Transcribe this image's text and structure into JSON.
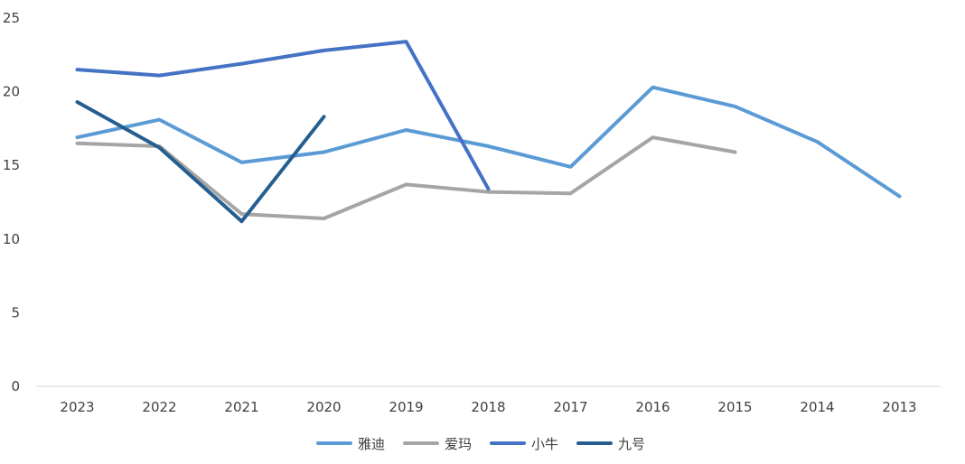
{
  "chart_data": {
    "type": "line",
    "title": "",
    "xlabel": "",
    "ylabel": "",
    "categories": [
      "2023",
      "2022",
      "2021",
      "2020",
      "2019",
      "2018",
      "2017",
      "2016",
      "2015",
      "2014",
      "2013"
    ],
    "ylim": [
      0,
      25
    ],
    "yticks": [
      0,
      5,
      10,
      15,
      20,
      25
    ],
    "grid": false,
    "legend_position": "bottom",
    "series": [
      {
        "name": "雅迪",
        "color": "#5b9bd5",
        "values": [
          16.9,
          18.1,
          15.2,
          15.9,
          17.4,
          16.3,
          14.9,
          20.3,
          19.0,
          16.6,
          12.9
        ]
      },
      {
        "name": "爱玛",
        "color": "#a5a5a5",
        "values": [
          16.5,
          16.3,
          11.7,
          11.4,
          13.7,
          13.2,
          13.1,
          16.9,
          15.9,
          null,
          null
        ]
      },
      {
        "name": "小牛",
        "color": "#4472c4",
        "values": [
          21.5,
          21.1,
          21.9,
          22.8,
          23.4,
          13.4,
          null,
          null,
          null,
          null,
          null
        ]
      },
      {
        "name": "九号",
        "color": "#255e91",
        "values": [
          19.3,
          16.2,
          11.2,
          18.3,
          null,
          null,
          null,
          null,
          null,
          null,
          null
        ]
      }
    ]
  }
}
